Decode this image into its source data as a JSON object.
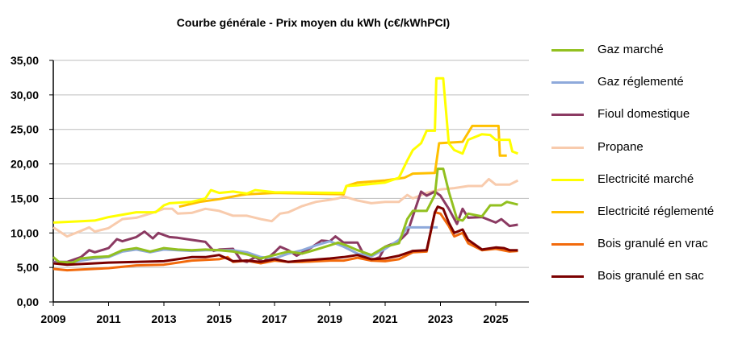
{
  "chart_data": {
    "type": "line",
    "title": "Courbe générale - Prix moyen du kWh (c€/kWhPCI)",
    "xlabel": "",
    "ylabel": "",
    "xlim": [
      2009,
      2026
    ],
    "ylim": [
      0,
      35
    ],
    "x_ticks": [
      "2009",
      "2011",
      "2013",
      "2015",
      "2017",
      "2019",
      "2021",
      "2023",
      "2025"
    ],
    "y_ticks": [
      "0,00",
      "5,00",
      "10,00",
      "15,00",
      "20,00",
      "25,00",
      "30,00",
      "35,00"
    ],
    "grid": "horizontal",
    "legend_position": "right",
    "series": [
      {
        "name": "Gaz marché",
        "color": "#92C01F",
        "points": [
          [
            2009,
            6.5
          ],
          [
            2009.2,
            5.8
          ],
          [
            2009.7,
            5.7
          ],
          [
            2010,
            6.3
          ],
          [
            2010.5,
            6.5
          ],
          [
            2011,
            6.6
          ],
          [
            2011.5,
            7.5
          ],
          [
            2012,
            7.8
          ],
          [
            2012.5,
            7.3
          ],
          [
            2013,
            7.8
          ],
          [
            2013.5,
            7.6
          ],
          [
            2014,
            7.5
          ],
          [
            2014.5,
            7.6
          ],
          [
            2015,
            7.5
          ],
          [
            2015.5,
            7.3
          ],
          [
            2016,
            6.9
          ],
          [
            2016.5,
            6.3
          ],
          [
            2017,
            6.8
          ],
          [
            2017.5,
            7.3
          ],
          [
            2018,
            7.0
          ],
          [
            2018.5,
            7.6
          ],
          [
            2019,
            8.2
          ],
          [
            2019.3,
            8.6
          ],
          [
            2019.6,
            8.2
          ],
          [
            2020,
            7.5
          ],
          [
            2020.5,
            6.8
          ],
          [
            2020.8,
            7.5
          ],
          [
            2021,
            8.0
          ],
          [
            2021.5,
            8.5
          ],
          [
            2021.8,
            12.0
          ],
          [
            2022,
            13.2
          ],
          [
            2022.5,
            13.2
          ],
          [
            2022.8,
            15.5
          ],
          [
            2022.9,
            19.3
          ],
          [
            2023.1,
            19.3
          ],
          [
            2023.3,
            16.0
          ],
          [
            2023.6,
            12.0
          ],
          [
            2023.8,
            11.8
          ],
          [
            2024,
            12.8
          ],
          [
            2024.5,
            12.4
          ],
          [
            2024.8,
            14.0
          ],
          [
            2025.2,
            14.0
          ],
          [
            2025.4,
            14.5
          ],
          [
            2025.8,
            14.1
          ]
        ]
      },
      {
        "name": "Gaz réglementé",
        "color": "#8EA9DB",
        "points": [
          [
            2009,
            5.7
          ],
          [
            2009.5,
            5.6
          ],
          [
            2010,
            6.0
          ],
          [
            2010.5,
            6.3
          ],
          [
            2011,
            6.5
          ],
          [
            2011.5,
            7.3
          ],
          [
            2012,
            7.6
          ],
          [
            2012.5,
            7.2
          ],
          [
            2013,
            7.6
          ],
          [
            2013.5,
            7.5
          ],
          [
            2014,
            7.4
          ],
          [
            2014.5,
            7.5
          ],
          [
            2015,
            7.5
          ],
          [
            2015.5,
            7.5
          ],
          [
            2016,
            7.2
          ],
          [
            2016.5,
            6.5
          ],
          [
            2017,
            6.3
          ],
          [
            2017.5,
            7.0
          ],
          [
            2018,
            7.5
          ],
          [
            2018.5,
            8.2
          ],
          [
            2019,
            8.8
          ],
          [
            2019.5,
            8.0
          ],
          [
            2020,
            7.0
          ],
          [
            2020.5,
            6.6
          ],
          [
            2021,
            7.7
          ],
          [
            2021.5,
            9.0
          ],
          [
            2021.8,
            10.8
          ],
          [
            2022.9,
            10.8
          ]
        ]
      },
      {
        "name": "Fioul domestique",
        "color": "#8B3A62",
        "points": [
          [
            2009,
            5.8
          ],
          [
            2009.5,
            5.8
          ],
          [
            2010,
            6.5
          ],
          [
            2010.3,
            7.5
          ],
          [
            2010.5,
            7.2
          ],
          [
            2011,
            7.8
          ],
          [
            2011.3,
            9.1
          ],
          [
            2011.5,
            8.8
          ],
          [
            2012,
            9.4
          ],
          [
            2012.3,
            10.2
          ],
          [
            2012.6,
            9.2
          ],
          [
            2012.8,
            10.0
          ],
          [
            2013.2,
            9.4
          ],
          [
            2013.5,
            9.3
          ],
          [
            2014,
            9.0
          ],
          [
            2014.5,
            8.7
          ],
          [
            2014.8,
            7.4
          ],
          [
            2015,
            7.6
          ],
          [
            2015.5,
            7.7
          ],
          [
            2015.8,
            6.0
          ],
          [
            2016,
            5.8
          ],
          [
            2016.3,
            6.5
          ],
          [
            2016.6,
            5.8
          ],
          [
            2017,
            7.2
          ],
          [
            2017.2,
            8.0
          ],
          [
            2017.5,
            7.5
          ],
          [
            2017.8,
            6.7
          ],
          [
            2018.3,
            7.8
          ],
          [
            2018.7,
            8.9
          ],
          [
            2019,
            8.8
          ],
          [
            2019.2,
            9.5
          ],
          [
            2019.5,
            8.6
          ],
          [
            2020,
            8.6
          ],
          [
            2020.3,
            6.3
          ],
          [
            2020.5,
            6.0
          ],
          [
            2020.8,
            6.5
          ],
          [
            2021,
            8.0
          ],
          [
            2021.5,
            8.8
          ],
          [
            2021.8,
            10.0
          ],
          [
            2022.3,
            16.0
          ],
          [
            2022.5,
            15.4
          ],
          [
            2022.8,
            16.0
          ],
          [
            2023,
            15.4
          ],
          [
            2023.3,
            13.5
          ],
          [
            2023.6,
            11.3
          ],
          [
            2023.8,
            13.5
          ],
          [
            2024,
            12.2
          ],
          [
            2024.5,
            12.3
          ],
          [
            2025,
            11.5
          ],
          [
            2025.2,
            12.0
          ],
          [
            2025.5,
            11.0
          ],
          [
            2025.8,
            11.2
          ]
        ]
      },
      {
        "name": "Propane",
        "color": "#F8CBAD",
        "points": [
          [
            2009,
            10.8
          ],
          [
            2009.5,
            9.5
          ],
          [
            2010,
            10.3
          ],
          [
            2010.3,
            10.8
          ],
          [
            2010.5,
            10.2
          ],
          [
            2011,
            10.7
          ],
          [
            2011.5,
            12.0
          ],
          [
            2012,
            12.2
          ],
          [
            2012.5,
            12.8
          ],
          [
            2013,
            13.5
          ],
          [
            2013.3,
            13.5
          ],
          [
            2013.5,
            12.8
          ],
          [
            2014,
            12.9
          ],
          [
            2014.5,
            13.5
          ],
          [
            2015,
            13.2
          ],
          [
            2015.5,
            12.5
          ],
          [
            2016,
            12.5
          ],
          [
            2016.5,
            12.0
          ],
          [
            2016.9,
            11.7
          ],
          [
            2017.2,
            12.8
          ],
          [
            2017.5,
            13.0
          ],
          [
            2018,
            13.9
          ],
          [
            2018.5,
            14.5
          ],
          [
            2019,
            14.8
          ],
          [
            2019.3,
            15.0
          ],
          [
            2019.5,
            15.3
          ],
          [
            2020,
            14.7
          ],
          [
            2020.5,
            14.3
          ],
          [
            2021,
            14.5
          ],
          [
            2021.5,
            14.5
          ],
          [
            2021.8,
            15.5
          ],
          [
            2022,
            15.0
          ],
          [
            2022.5,
            15.8
          ],
          [
            2023,
            16.3
          ],
          [
            2023.5,
            16.5
          ],
          [
            2024,
            16.8
          ],
          [
            2024.5,
            16.8
          ],
          [
            2024.75,
            17.8
          ],
          [
            2025,
            17.0
          ],
          [
            2025.5,
            17.0
          ],
          [
            2025.8,
            17.6
          ]
        ]
      },
      {
        "name": "Electricité marché",
        "color": "#FFFF00",
        "points": [
          [
            2009,
            11.5
          ],
          [
            2010,
            11.7
          ],
          [
            2010.5,
            11.8
          ],
          [
            2011,
            12.3
          ],
          [
            2012,
            13.0
          ],
          [
            2012.7,
            13.0
          ],
          [
            2013,
            14.0
          ],
          [
            2013.2,
            14.3
          ],
          [
            2014,
            14.5
          ],
          [
            2014.5,
            15.0
          ],
          [
            2014.7,
            16.2
          ],
          [
            2015,
            15.8
          ],
          [
            2015.5,
            16.0
          ],
          [
            2016,
            15.7
          ],
          [
            2016.3,
            16.2
          ],
          [
            2017,
            15.9
          ],
          [
            2019.5,
            15.8
          ],
          [
            2019.6,
            16.8
          ],
          [
            2020,
            16.9
          ],
          [
            2021,
            17.3
          ],
          [
            2021.5,
            18.0
          ],
          [
            2021.8,
            20.5
          ],
          [
            2022,
            22.0
          ],
          [
            2022.3,
            23.0
          ],
          [
            2022.5,
            24.8
          ],
          [
            2022.8,
            24.8
          ],
          [
            2022.85,
            32.4
          ],
          [
            2023.1,
            32.4
          ],
          [
            2023.3,
            23.0
          ],
          [
            2023.5,
            22.0
          ],
          [
            2023.8,
            21.5
          ],
          [
            2024,
            23.5
          ],
          [
            2024.5,
            24.3
          ],
          [
            2024.8,
            24.2
          ],
          [
            2025,
            23.5
          ],
          [
            2025.5,
            23.5
          ],
          [
            2025.6,
            21.8
          ],
          [
            2025.8,
            21.5
          ]
        ]
      },
      {
        "name": "Electricité réglementé",
        "color": "#FFC000",
        "points": [
          [
            2013.55,
            13.8
          ],
          [
            2014.3,
            14.5
          ],
          [
            2015,
            14.9
          ],
          [
            2015.8,
            15.5
          ],
          [
            2016,
            15.6
          ],
          [
            2017,
            15.8
          ],
          [
            2019.5,
            15.6
          ],
          [
            2019.6,
            16.8
          ],
          [
            2020,
            17.3
          ],
          [
            2021,
            17.6
          ],
          [
            2021.7,
            18.0
          ],
          [
            2022,
            18.6
          ],
          [
            2022.8,
            18.7
          ],
          [
            2022.95,
            23.0
          ],
          [
            2023.8,
            23.2
          ],
          [
            2024.15,
            25.5
          ],
          [
            2025.1,
            25.5
          ],
          [
            2025.15,
            21.2
          ],
          [
            2025.4,
            21.2
          ]
        ]
      },
      {
        "name": "Bois granulé en vrac",
        "color": "#F26A0C",
        "points": [
          [
            2009,
            4.8
          ],
          [
            2009.5,
            4.6
          ],
          [
            2010,
            4.7
          ],
          [
            2011,
            4.9
          ],
          [
            2012,
            5.3
          ],
          [
            2013,
            5.4
          ],
          [
            2014,
            6.0
          ],
          [
            2014.5,
            6.1
          ],
          [
            2015,
            6.2
          ],
          [
            2015.3,
            6.5
          ],
          [
            2015.5,
            5.8
          ],
          [
            2016,
            6.0
          ],
          [
            2016.5,
            5.6
          ],
          [
            2017,
            6.0
          ],
          [
            2017.5,
            5.8
          ],
          [
            2018,
            5.8
          ],
          [
            2019,
            6.0
          ],
          [
            2019.5,
            6.0
          ],
          [
            2020,
            6.4
          ],
          [
            2020.5,
            6.0
          ],
          [
            2021,
            5.9
          ],
          [
            2021.5,
            6.2
          ],
          [
            2022,
            7.2
          ],
          [
            2022.5,
            7.3
          ],
          [
            2022.8,
            13.0
          ],
          [
            2023,
            12.8
          ],
          [
            2023.3,
            11.0
          ],
          [
            2023.5,
            9.5
          ],
          [
            2023.8,
            10.0
          ],
          [
            2024,
            8.5
          ],
          [
            2024.5,
            7.5
          ],
          [
            2025,
            7.7
          ],
          [
            2025.5,
            7.3
          ],
          [
            2025.8,
            7.4
          ]
        ]
      },
      {
        "name": "Bois granulé en sac",
        "color": "#7B0000",
        "points": [
          [
            2009,
            5.6
          ],
          [
            2009.5,
            5.4
          ],
          [
            2010,
            5.5
          ],
          [
            2011,
            5.7
          ],
          [
            2012,
            5.8
          ],
          [
            2013,
            5.9
          ],
          [
            2014,
            6.5
          ],
          [
            2014.5,
            6.5
          ],
          [
            2015,
            6.8
          ],
          [
            2015.5,
            5.9
          ],
          [
            2016,
            6.0
          ],
          [
            2016.5,
            5.8
          ],
          [
            2017,
            6.2
          ],
          [
            2017.5,
            5.8
          ],
          [
            2018,
            6.0
          ],
          [
            2019,
            6.3
          ],
          [
            2019.5,
            6.5
          ],
          [
            2020,
            6.8
          ],
          [
            2020.5,
            6.2
          ],
          [
            2021,
            6.3
          ],
          [
            2021.5,
            6.7
          ],
          [
            2022,
            7.4
          ],
          [
            2022.5,
            7.5
          ],
          [
            2022.8,
            13.0
          ],
          [
            2022.9,
            13.8
          ],
          [
            2023.1,
            13.5
          ],
          [
            2023.3,
            11.5
          ],
          [
            2023.5,
            10.0
          ],
          [
            2023.8,
            10.5
          ],
          [
            2024,
            9.0
          ],
          [
            2024.5,
            7.6
          ],
          [
            2025,
            7.9
          ],
          [
            2025.3,
            7.8
          ],
          [
            2025.5,
            7.5
          ],
          [
            2025.8,
            7.5
          ]
        ]
      }
    ]
  }
}
